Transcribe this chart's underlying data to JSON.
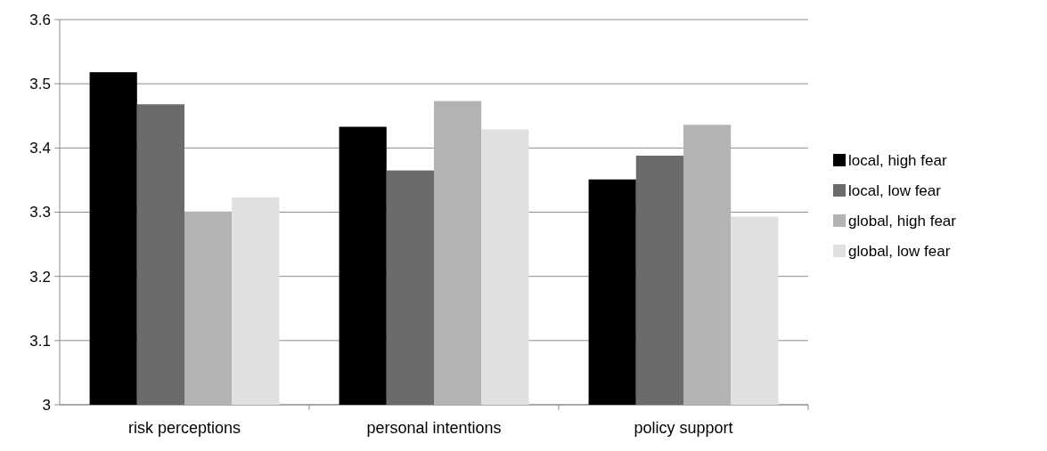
{
  "chart_data": {
    "type": "bar",
    "categories": [
      "risk perceptions",
      "personal intentions",
      "policy support"
    ],
    "series": [
      {
        "name": "local, high fear",
        "color": "#000000",
        "values": [
          3.518,
          3.433,
          3.351
        ]
      },
      {
        "name": "local, low fear",
        "color": "#6b6b6b",
        "values": [
          3.468,
          3.365,
          3.388
        ]
      },
      {
        "name": "global, high fear",
        "color": "#b3b3b3",
        "values": [
          3.301,
          3.473,
          3.436
        ]
      },
      {
        "name": "global, low fear",
        "color": "#e0e0e0",
        "values": [
          3.323,
          3.429,
          3.293
        ]
      }
    ],
    "ylim": [
      3,
      3.6
    ],
    "yticks": [
      3,
      3.1,
      3.2,
      3.3,
      3.4,
      3.5,
      3.6
    ],
    "grid": "y",
    "legend": "right"
  }
}
